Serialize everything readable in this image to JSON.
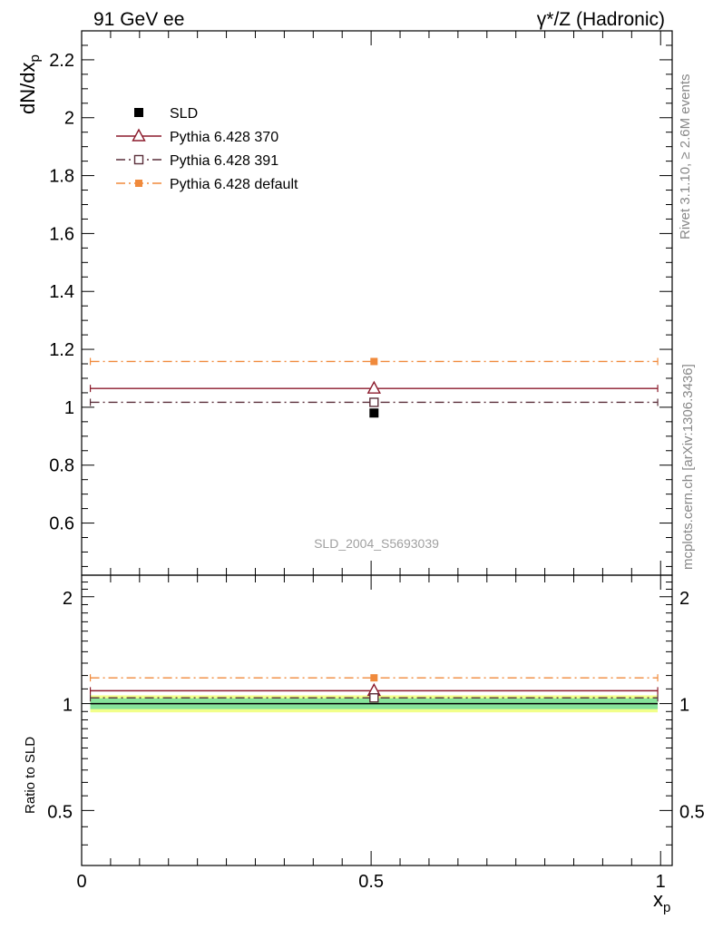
{
  "chart_data": [
    {
      "panel": "main",
      "type": "line",
      "top_left_label": "91 GeV ee",
      "top_right_label": "γ*/Z (Hadronic)",
      "ylabel": "dN/dx",
      "ylabel_sub": "p",
      "ylim": [
        0.42,
        2.3
      ],
      "yticks": [
        "0.6",
        "0.8",
        "1",
        "1.2",
        "1.4",
        "1.6",
        "1.8",
        "2",
        "2.2"
      ],
      "ytick_values": [
        0.6,
        0.8,
        1.0,
        1.2,
        1.4,
        1.6,
        1.8,
        2.0,
        2.2
      ],
      "xlim": [
        0,
        1.02
      ],
      "xbin": [
        0.015,
        0.995
      ],
      "x": 0.505,
      "analysis_label": "SLD_2004_S5693039",
      "series": [
        {
          "name": "SLD",
          "value": 0.98,
          "color": "#000000",
          "marker": "filled-square",
          "line": "none"
        },
        {
          "name": "Pythia 6.428 370",
          "value": 1.065,
          "color": "#8b1a2b",
          "marker": "open-triangle",
          "line": "solid"
        },
        {
          "name": "Pythia 6.428 391",
          "value": 1.017,
          "color": "#5a2f3a",
          "marker": "open-square",
          "line": "dashdot"
        },
        {
          "name": "Pythia 6.428 default",
          "value": 1.158,
          "color": "#f08a3c",
          "marker": "filled-small-square",
          "line": "dashdot"
        }
      ]
    },
    {
      "panel": "ratio",
      "type": "line",
      "ylabel": "Ratio to SLD",
      "ylim": [
        0.35,
        2.3
      ],
      "yticks": [
        "0.5",
        "1",
        "2"
      ],
      "ytick_values": [
        0.5,
        1.0,
        2.0
      ],
      "xlabel": "x",
      "xlabel_sub": "p",
      "xticks": [
        "0",
        "0.5",
        "1"
      ],
      "xtick_values": [
        0,
        0.5,
        1.0
      ],
      "band_inner": [
        0.965,
        1.035
      ],
      "band_outer": [
        0.945,
        1.055
      ],
      "band_colors": {
        "inner": "#86e39a",
        "outer": "#f2ff8a"
      },
      "series": [
        {
          "name": "Pythia 6.428 370",
          "value": 1.087,
          "color": "#8b1a2b"
        },
        {
          "name": "Pythia 6.428 391",
          "value": 1.038,
          "color": "#5a2f3a"
        },
        {
          "name": "Pythia 6.428 default",
          "value": 1.182,
          "color": "#f08a3c"
        }
      ]
    }
  ],
  "side_labels": {
    "rivet": "Rivet 3.1.10, ≥ 2.6M events",
    "mcplots": "mcplots.cern.ch [arXiv:1306.3436]"
  }
}
